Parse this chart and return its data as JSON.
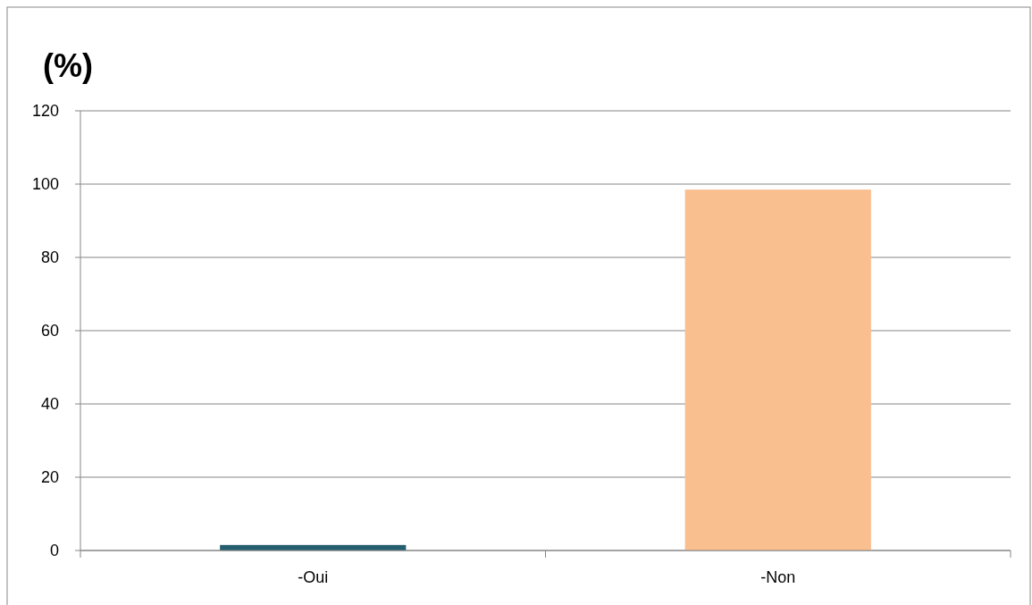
{
  "chart_data": {
    "type": "bar",
    "ylabel": "(%)",
    "categories": [
      "-Oui",
      "-Non"
    ],
    "values": [
      1.5,
      98.5
    ],
    "colors": [
      "#255e6e",
      "#f9bf8f"
    ],
    "ylim": [
      0,
      120
    ],
    "yticks": [
      0,
      20,
      40,
      60,
      80,
      100,
      120
    ],
    "grid": "y"
  }
}
